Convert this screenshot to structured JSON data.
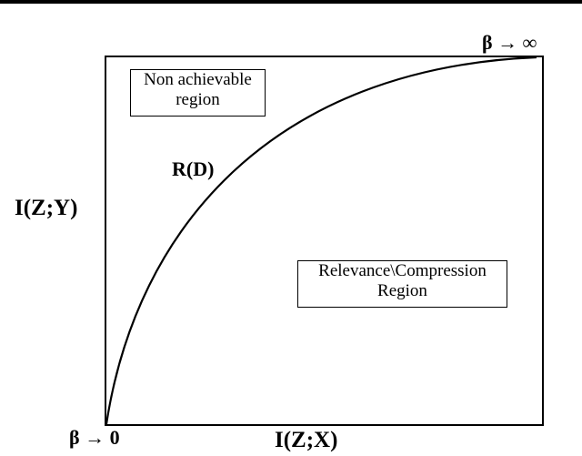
{
  "diagram": {
    "y_axis_label": "I(Z;Y)",
    "x_axis_label": "I(Z;X)",
    "curve_label": "R(D)",
    "start_label": "β → 0",
    "end_label": "β → ∞",
    "region_top_left": {
      "line1": "Non achievable",
      "line2": "region"
    },
    "region_right": {
      "line1": "Relevance\\Compression",
      "line2": "Region"
    }
  }
}
